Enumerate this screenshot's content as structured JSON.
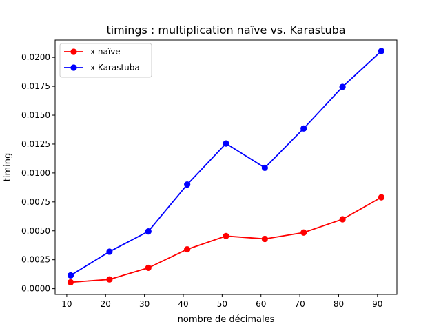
{
  "chart_data": {
    "type": "line",
    "title": "timings : multiplication naïve vs. Karastuba",
    "xlabel": "nombre de décimales",
    "ylabel": "timing",
    "x": [
      11,
      21,
      31,
      41,
      51,
      61,
      71,
      81,
      91
    ],
    "xlim": [
      7,
      95
    ],
    "ylim": [
      -0.0005,
      0.0215
    ],
    "xticks": [
      10,
      20,
      30,
      40,
      50,
      60,
      70,
      80,
      90
    ],
    "xtick_labels": [
      "10",
      "20",
      "30",
      "40",
      "50",
      "60",
      "70",
      "80",
      "90"
    ],
    "yticks": [
      0,
      0.0025,
      0.005,
      0.0075,
      0.01,
      0.0125,
      0.015,
      0.0175,
      0.02
    ],
    "ytick_labels": [
      "0.0000",
      "0.0025",
      "0.0050",
      "0.0075",
      "0.0100",
      "0.0125",
      "0.0150",
      "0.0175",
      "0.0200"
    ],
    "grid": false,
    "legend_position": "top-left",
    "series": [
      {
        "name": "x naïve",
        "color": "#ff0000",
        "values": [
          0.00055,
          0.0008,
          0.0018,
          0.0034,
          0.00455,
          0.0043,
          0.00485,
          0.006,
          0.0079
        ]
      },
      {
        "name": "x Karastuba",
        "color": "#0000ff",
        "values": [
          0.00115,
          0.0032,
          0.00495,
          0.009,
          0.01255,
          0.01045,
          0.01385,
          0.01745,
          0.02055
        ]
      }
    ]
  }
}
